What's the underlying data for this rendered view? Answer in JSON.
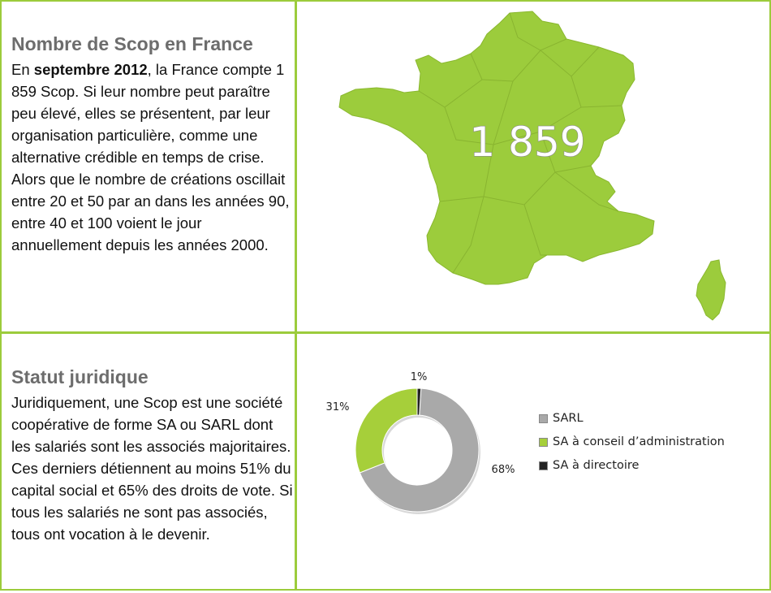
{
  "section1": {
    "heading": "Nombre de Scop en France",
    "line_pre": "En ",
    "line_bold": "septembre 2012",
    "line_post": ", la France compte 1 859 Scop. Si leur nombre peut paraître peu élevé, elles se présentent, par leur organisation particulière, comme une alternative crédible en temps de crise.",
    "para2": "Alors que le nombre de créations oscillait entre 20 et 50 par an dans les années 90, entre 40 et 100 voient le jour annuellement depuis les années 2000.",
    "map_number": "1 859"
  },
  "section2": {
    "heading": "Statut juridique",
    "para1": "Juridiquement, une Scop est une société coopérative de forme SA ou SARL dont les salariés sont les associés majoritaires.",
    "para2": "Ces derniers détiennent au moins 51% du capital social et 65% des droits de vote. Si tous les salariés ne sont pas associés, tous ont vocation à le devenir."
  },
  "colors": {
    "border": "#9ccc3c",
    "map_fill": "#9ccc3c",
    "sarl": "#a9a9a9",
    "sa_ca": "#a6cf3a",
    "sa_dir": "#222222"
  },
  "chart_data": {
    "type": "pie",
    "variant": "donut",
    "categories": [
      "SARL",
      "SA à conseil d’administration",
      "SA à directoire"
    ],
    "values": [
      68,
      31,
      1
    ],
    "value_labels": [
      "68%",
      "31%",
      "1%"
    ],
    "legend_placement": "right"
  }
}
